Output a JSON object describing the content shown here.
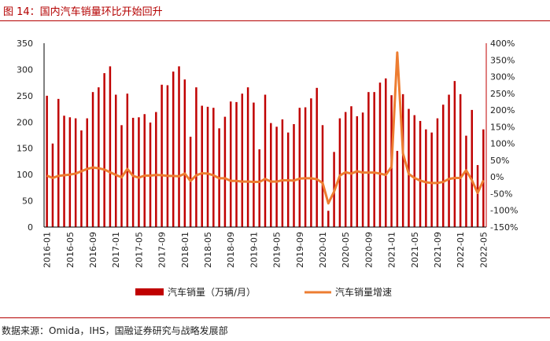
{
  "title": "图 14：国内汽车销量环比开始回升",
  "source": "数据来源：Omida，IHS，国融证券研究与战略发展部",
  "colors": {
    "bar": "#c00000",
    "line": "#ed7d31",
    "accent": "#b40000"
  },
  "chart_data": {
    "type": "bar",
    "title": "图 14：国内汽车销量环比开始回升",
    "categories": [
      "2016-01",
      "2016-02",
      "2016-03",
      "2016-04",
      "2016-05",
      "2016-06",
      "2016-07",
      "2016-08",
      "2016-09",
      "2016-10",
      "2016-11",
      "2016-12",
      "2017-01",
      "2017-02",
      "2017-03",
      "2017-04",
      "2017-05",
      "2017-06",
      "2017-07",
      "2017-08",
      "2017-09",
      "2017-10",
      "2017-11",
      "2017-12",
      "2018-01",
      "2018-02",
      "2018-03",
      "2018-04",
      "2018-05",
      "2018-06",
      "2018-07",
      "2018-08",
      "2018-09",
      "2018-10",
      "2018-11",
      "2018-12",
      "2019-01",
      "2019-02",
      "2019-03",
      "2019-04",
      "2019-05",
      "2019-06",
      "2019-07",
      "2019-08",
      "2019-09",
      "2019-10",
      "2019-11",
      "2019-12",
      "2020-01",
      "2020-02",
      "2020-03",
      "2020-04",
      "2020-05",
      "2020-06",
      "2020-07",
      "2020-08",
      "2020-09",
      "2020-10",
      "2020-11",
      "2020-12",
      "2021-01",
      "2021-02",
      "2021-03",
      "2021-04",
      "2021-05",
      "2021-06",
      "2021-07",
      "2021-08",
      "2021-09",
      "2021-10",
      "2021-11",
      "2021-12",
      "2022-01",
      "2022-02",
      "2022-03",
      "2022-04",
      "2022-05"
    ],
    "x_tick_labels": [
      "2016-01",
      "2016-05",
      "2016-09",
      "2017-01",
      "2017-05",
      "2017-09",
      "2018-01",
      "2018-05",
      "2018-09",
      "2019-01",
      "2019-05",
      "2019-09",
      "2020-01",
      "2020-05",
      "2020-09",
      "2021-01",
      "2021-05",
      "2021-09",
      "2022-01",
      "2022-05"
    ],
    "series": [
      {
        "name": "汽车销量（万辆/月）",
        "type": "bar",
        "axis": "left",
        "values": [
          250,
          159,
          244,
          212,
          209,
          207,
          184,
          207,
          257,
          266,
          293,
          306,
          252,
          194,
          254,
          208,
          209,
          215,
          199,
          219,
          271,
          270,
          296,
          306,
          281,
          172,
          266,
          231,
          229,
          227,
          188,
          210,
          239,
          238,
          254,
          266,
          237,
          148,
          252,
          198,
          191,
          205,
          180,
          196,
          227,
          228,
          245,
          265,
          194,
          31,
          143,
          207,
          219,
          230,
          211,
          218,
          257,
          257,
          275,
          283,
          251,
          145,
          253,
          225,
          213,
          202,
          186,
          180,
          207,
          233,
          252,
          278,
          253,
          174,
          223,
          118,
          186
        ]
      },
      {
        "name": "汽车销量增速",
        "type": "line",
        "axis": "right",
        "values": [
          4,
          -3,
          3,
          5,
          7,
          10,
          17,
          24,
          28,
          26,
          22,
          14,
          6,
          -1,
          24,
          3,
          -2,
          4,
          4,
          6,
          5,
          3,
          3,
          2,
          10,
          -12,
          5,
          11,
          10,
          5,
          -4,
          -4,
          -12,
          -12,
          -14,
          -14,
          -15,
          -15,
          -6,
          -14,
          -14,
          -10,
          -10,
          -11,
          -5,
          -4,
          -4,
          -7,
          -18,
          -79,
          -44,
          4,
          14,
          10,
          17,
          13,
          13,
          13,
          10,
          6,
          30,
          372,
          70,
          9,
          -3,
          -11,
          -16,
          -18,
          -18,
          -15,
          -6,
          -3,
          -3,
          20,
          -10,
          -48,
          -10
        ]
      }
    ],
    "ylabel": "",
    "xlabel": "",
    "ylim": [
      0,
      350
    ],
    "y_ticks": [
      0,
      50,
      100,
      150,
      200,
      250,
      300,
      350
    ],
    "y2lim": [
      -150,
      400
    ],
    "y2_ticks": [
      "-150%",
      "-100%",
      "-50%",
      "0%",
      "50%",
      "100%",
      "150%",
      "200%",
      "250%",
      "300%",
      "350%",
      "400%"
    ],
    "legend": "bottom-center"
  }
}
